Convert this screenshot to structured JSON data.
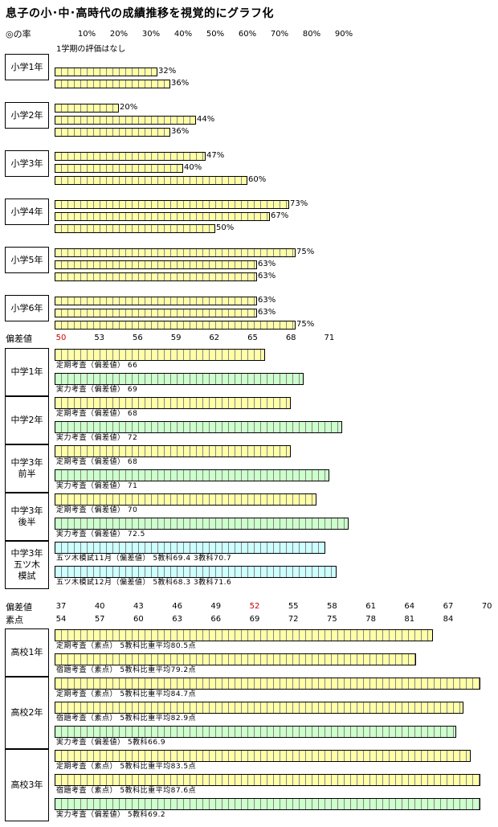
{
  "title": "息子の小･中･高時代の成績推移を視覚的にグラフ化",
  "chart_data": [
    {
      "type": "bar",
      "section": "elementary",
      "header_label": "◎の率",
      "ticks": [
        "10%",
        "20%",
        "30%",
        "40%",
        "50%",
        "60%",
        "70%",
        "80%",
        "90%"
      ],
      "xlim": [
        0,
        95
      ],
      "note": "1学期の評価はなし",
      "groups": [
        {
          "label": "小学1年",
          "values": [
            null,
            32,
            36
          ],
          "labels": [
            "",
            "32%",
            "36%"
          ]
        },
        {
          "label": "小学2年",
          "values": [
            20,
            44,
            36
          ],
          "labels": [
            "20%",
            "44%",
            "36%"
          ]
        },
        {
          "label": "小学3年",
          "values": [
            47,
            40,
            60
          ],
          "labels": [
            "47%",
            "40%",
            "60%"
          ]
        },
        {
          "label": "小学4年",
          "values": [
            73,
            67,
            50
          ],
          "labels": [
            "73%",
            "67%",
            "50%"
          ]
        },
        {
          "label": "小学5年",
          "values": [
            75,
            63,
            63
          ],
          "labels": [
            "75%",
            "63%",
            "63%"
          ]
        },
        {
          "label": "小学6年",
          "values": [
            63,
            63,
            75
          ],
          "labels": [
            "63%",
            "63%",
            "75%"
          ]
        }
      ]
    },
    {
      "type": "bar",
      "section": "junior_high",
      "header_label": "偏差値",
      "ticks": [
        "50",
        "53",
        "56",
        "59",
        "62",
        "65",
        "68",
        "71"
      ],
      "red_tick": "50",
      "xlim": [
        50,
        73.5
      ],
      "groups": [
        {
          "label": "中学1年",
          "bars": [
            {
              "value": 66,
              "color": "yellow",
              "caption": "定期考査（偏差値） 66"
            },
            {
              "value": 69,
              "color": "green",
              "caption": "実力考査（偏差値） 69"
            }
          ]
        },
        {
          "label": "中学2年",
          "bars": [
            {
              "value": 68,
              "color": "yellow",
              "caption": "定期考査（偏差値） 68"
            },
            {
              "value": 72,
              "color": "green",
              "caption": "実力考査（偏差値） 72"
            }
          ]
        },
        {
          "label": "中学3年\n前半",
          "bars": [
            {
              "value": 68,
              "color": "yellow",
              "caption": "定期考査（偏差値） 68"
            },
            {
              "value": 71,
              "color": "green",
              "caption": "実力考査（偏差値） 71"
            }
          ]
        },
        {
          "label": "中学3年\n後半",
          "bars": [
            {
              "value": 70,
              "color": "yellow",
              "caption": "定期考査（偏差値） 70"
            },
            {
              "value": 72.5,
              "color": "green",
              "caption": "実力考査（偏差値） 72.5"
            }
          ]
        },
        {
          "label": "中学3年\n五ツ木\n模試",
          "bars": [
            {
              "value": 70.7,
              "color": "blue",
              "caption": "五ツ木模試11月（偏差値） 5教科69.4 3教科70.7"
            },
            {
              "value": 71.6,
              "color": "blue",
              "caption": "五ツ木模試12月（偏差値） 5教科68.3 3教科71.6"
            }
          ]
        }
      ]
    },
    {
      "type": "bar",
      "section": "high_school",
      "header_label_1": "偏差値",
      "header_label_2": "素点",
      "ticks_deviation": [
        "37",
        "40",
        "43",
        "46",
        "49",
        "52",
        "55",
        "58",
        "61",
        "64",
        "67",
        "70"
      ],
      "red_tick": "52",
      "ticks_raw": [
        "54",
        "57",
        "60",
        "63",
        "66",
        "69",
        "72",
        "75",
        "78",
        "81",
        "84"
      ],
      "xlim_raw": [
        51,
        87.5
      ],
      "groups": [
        {
          "label": "高校1年",
          "bars": [
            {
              "value": 80.5,
              "color": "yellow",
              "caption": "定期考査（素点） 5教科比重平均80.5点"
            },
            {
              "value": 79.2,
              "color": "yellow",
              "caption": "宿題考査（素点） 5教科比重平均79.2点"
            }
          ]
        },
        {
          "label": "高校2年",
          "bars": [
            {
              "value": 84.7,
              "color": "yellow",
              "caption": "定期考査（素点） 5教科比重平均84.7点"
            },
            {
              "value": 82.9,
              "color": "yellow",
              "caption": "宿題考査（素点） 5教科比重平均82.9点"
            },
            {
              "value": 66.9,
              "color": "green",
              "caption": "実力考査（偏差値） 5教科66.9"
            }
          ]
        },
        {
          "label": "高校3年",
          "bars": [
            {
              "value": 83.5,
              "color": "yellow",
              "caption": "定期考査（素点） 5教科比重平均83.5点"
            },
            {
              "value": 87.6,
              "color": "yellow",
              "caption": "宿題考査（素点） 5教科比重平均87.6点"
            },
            {
              "value": 69.2,
              "color": "green",
              "caption": "実力考査（偏差値） 5教科69.2"
            }
          ]
        }
      ]
    }
  ]
}
